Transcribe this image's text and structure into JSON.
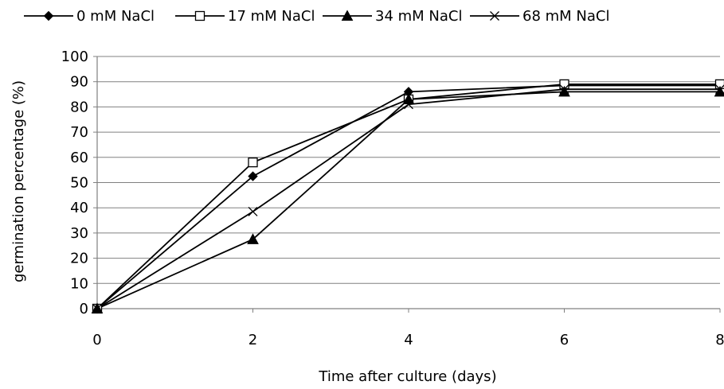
{
  "chart_data": {
    "type": "line",
    "title": "",
    "xlabel": "Time after culture (days)",
    "ylabel": "germination percentage (%)",
    "x": [
      0,
      2,
      4,
      6,
      8
    ],
    "xlim": [
      0,
      8
    ],
    "ylim": [
      0,
      100
    ],
    "x_ticks": [
      "0",
      "2",
      "4",
      "6",
      "8"
    ],
    "y_ticks": [
      "0",
      "10",
      "20",
      "30",
      "40",
      "50",
      "60",
      "70",
      "80",
      "90",
      "100"
    ],
    "grid": "horizontal",
    "legend_position": "top",
    "series": [
      {
        "name": "0 mM NaCl",
        "marker": "diamond-filled",
        "values": [
          0,
          52.5,
          86,
          88.5,
          88.5
        ]
      },
      {
        "name": "17 mM NaCl",
        "marker": "square-open",
        "values": [
          0,
          58,
          83,
          89,
          89
        ]
      },
      {
        "name": "34 mM NaCl",
        "marker": "triangle-filled",
        "values": [
          0,
          27.5,
          83,
          86,
          86
        ]
      },
      {
        "name": "68 mM NaCl",
        "marker": "x-cross",
        "values": [
          0,
          38.5,
          81,
          87,
          87
        ]
      }
    ],
    "colors": {
      "line": "#000000",
      "grid": "#808080"
    }
  }
}
